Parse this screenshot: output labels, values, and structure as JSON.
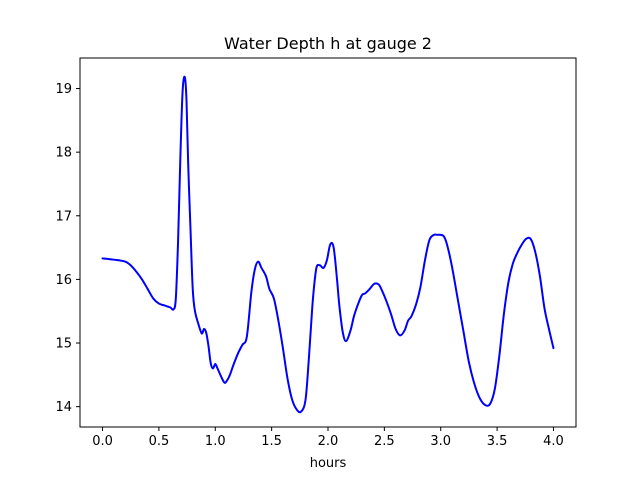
{
  "chart_data": {
    "type": "line",
    "title": "Water Depth h at gauge 2",
    "xlabel": "hours",
    "ylabel": "",
    "xlim": [
      -0.2,
      4.2
    ],
    "ylim": [
      13.68,
      19.48
    ],
    "xticks": [
      0.0,
      0.5,
      1.0,
      1.5,
      2.0,
      2.5,
      3.0,
      3.5,
      4.0
    ],
    "xtick_labels": [
      "0.0",
      "0.5",
      "1.0",
      "1.5",
      "2.0",
      "2.5",
      "3.0",
      "3.5",
      "4.0"
    ],
    "yticks": [
      14,
      15,
      16,
      17,
      18,
      19
    ],
    "ytick_labels": [
      "14",
      "15",
      "16",
      "17",
      "18",
      "19"
    ],
    "grid": false,
    "legend": "none",
    "series": [
      {
        "color": "#0000ff",
        "x": [
          0.0,
          0.1,
          0.2,
          0.25,
          0.3,
          0.35,
          0.4,
          0.45,
          0.5,
          0.55,
          0.6,
          0.63,
          0.65,
          0.67,
          0.69,
          0.71,
          0.73,
          0.745,
          0.76,
          0.78,
          0.8,
          0.82,
          0.85,
          0.88,
          0.9,
          0.92,
          0.94,
          0.96,
          0.98,
          1.0,
          1.02,
          1.05,
          1.08,
          1.1,
          1.13,
          1.16,
          1.2,
          1.24,
          1.28,
          1.32,
          1.35,
          1.38,
          1.41,
          1.45,
          1.48,
          1.52,
          1.56,
          1.6,
          1.64,
          1.68,
          1.72,
          1.76,
          1.8,
          1.83,
          1.86,
          1.88,
          1.9,
          1.93,
          1.96,
          1.99,
          2.02,
          2.05,
          2.08,
          2.1,
          2.13,
          2.16,
          2.2,
          2.23,
          2.26,
          2.3,
          2.33,
          2.37,
          2.41,
          2.45,
          2.48,
          2.52,
          2.56,
          2.6,
          2.64,
          2.68,
          2.71,
          2.74,
          2.78,
          2.82,
          2.86,
          2.9,
          2.94,
          2.97,
          3.0,
          3.03,
          3.06,
          3.1,
          3.15,
          3.2,
          3.25,
          3.3,
          3.35,
          3.4,
          3.44,
          3.48,
          3.52,
          3.56,
          3.6,
          3.64,
          3.68,
          3.72,
          3.76,
          3.8,
          3.84,
          3.88,
          3.92,
          3.96,
          4.0
        ],
        "y": [
          16.33,
          16.31,
          16.28,
          16.22,
          16.12,
          16.0,
          15.85,
          15.7,
          15.62,
          15.59,
          15.56,
          15.53,
          15.7,
          16.6,
          17.9,
          18.95,
          19.18,
          18.8,
          17.8,
          16.8,
          15.85,
          15.5,
          15.3,
          15.15,
          15.22,
          15.16,
          14.95,
          14.68,
          14.6,
          14.67,
          14.6,
          14.48,
          14.38,
          14.4,
          14.5,
          14.65,
          14.83,
          14.97,
          15.1,
          15.8,
          16.15,
          16.28,
          16.18,
          16.05,
          15.85,
          15.7,
          15.35,
          14.92,
          14.45,
          14.12,
          13.96,
          13.92,
          14.1,
          14.75,
          15.55,
          15.95,
          16.2,
          16.22,
          16.18,
          16.3,
          16.55,
          16.5,
          16.0,
          15.6,
          15.18,
          15.03,
          15.2,
          15.42,
          15.58,
          15.75,
          15.78,
          15.85,
          15.93,
          15.92,
          15.82,
          15.65,
          15.45,
          15.22,
          15.12,
          15.2,
          15.35,
          15.42,
          15.6,
          15.88,
          16.3,
          16.62,
          16.7,
          16.7,
          16.7,
          16.67,
          16.52,
          16.2,
          15.7,
          15.2,
          14.7,
          14.35,
          14.12,
          14.02,
          14.05,
          14.28,
          14.8,
          15.45,
          15.95,
          16.25,
          16.42,
          16.55,
          16.64,
          16.63,
          16.42,
          16.05,
          15.55,
          15.22,
          14.92
        ]
      }
    ]
  }
}
